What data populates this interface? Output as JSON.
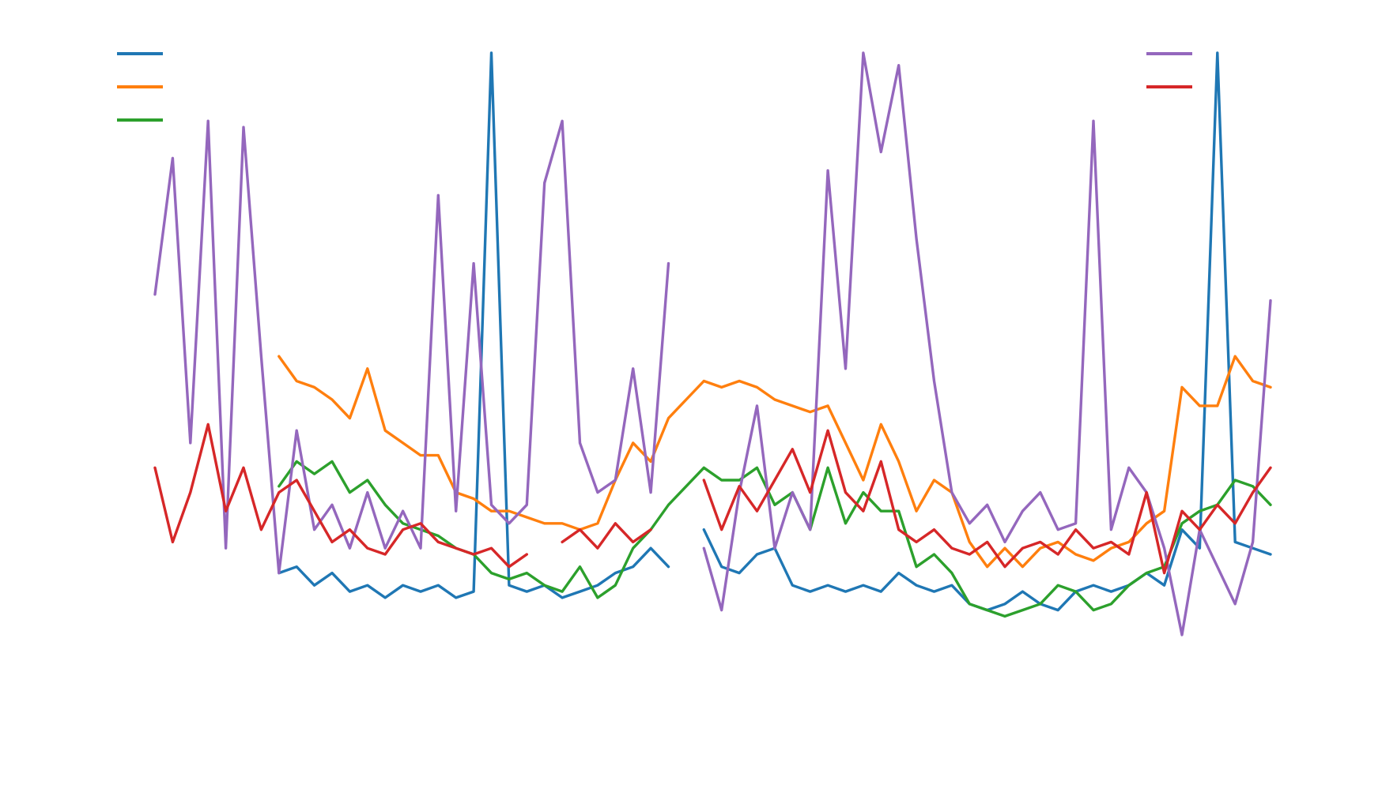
{
  "chart_data": {
    "type": "line",
    "x": [
      0,
      1,
      2,
      3,
      4,
      5,
      6,
      7,
      8,
      9,
      10,
      11,
      12,
      13,
      14,
      15,
      16,
      17,
      18,
      19,
      20,
      21,
      22,
      23,
      24,
      25,
      26,
      27,
      28,
      29,
      30,
      31,
      32,
      33,
      34,
      35,
      36,
      37,
      38,
      39,
      40,
      41,
      42,
      43,
      44,
      45,
      46,
      47,
      48,
      49,
      50,
      51,
      52,
      53,
      54,
      55,
      56,
      57,
      58,
      59,
      60,
      61,
      62,
      63
    ],
    "xlim": [
      0,
      63
    ],
    "ylim": [
      0,
      100
    ],
    "series": [
      {
        "color": "#1f77b4",
        "values": [
          null,
          null,
          null,
          null,
          null,
          null,
          null,
          16,
          17,
          14,
          16,
          13,
          14,
          12,
          14,
          13,
          14,
          12,
          13,
          100,
          14,
          13,
          14,
          12,
          13,
          14,
          16,
          17,
          20,
          17,
          null,
          23,
          17,
          16,
          19,
          20,
          14,
          13,
          14,
          13,
          14,
          13,
          16,
          14,
          13,
          14,
          11,
          10,
          11,
          13,
          11,
          10,
          13,
          14,
          13,
          14,
          16,
          14,
          23,
          20,
          100,
          21,
          20,
          19
        ]
      },
      {
        "color": "#ff7f0e",
        "values": [
          null,
          null,
          null,
          null,
          null,
          null,
          null,
          51,
          47,
          46,
          44,
          41,
          49,
          39,
          37,
          35,
          35,
          29,
          28,
          26,
          26,
          25,
          24,
          24,
          23,
          24,
          31,
          37,
          34,
          41,
          44,
          47,
          46,
          47,
          46,
          44,
          43,
          42,
          43,
          37,
          31,
          40,
          34,
          26,
          31,
          29,
          21,
          17,
          20,
          17,
          20,
          21,
          19,
          18,
          20,
          21,
          24,
          26,
          46,
          43,
          43,
          51,
          47,
          46
        ]
      },
      {
        "color": "#2ca02c",
        "values": [
          null,
          null,
          null,
          null,
          null,
          null,
          null,
          30,
          34,
          32,
          34,
          29,
          31,
          27,
          24,
          23,
          22,
          20,
          19,
          16,
          15,
          16,
          14,
          13,
          17,
          12,
          14,
          20,
          23,
          27,
          30,
          33,
          31,
          31,
          33,
          27,
          29,
          23,
          33,
          24,
          29,
          26,
          26,
          17,
          19,
          16,
          11,
          10,
          9,
          10,
          11,
          14,
          13,
          10,
          11,
          14,
          16,
          17,
          24,
          26,
          27,
          31,
          30,
          27
        ]
      },
      {
        "color": "#9467bd",
        "values": [
          61,
          83,
          37,
          89,
          20,
          88,
          51,
          16,
          39,
          23,
          27,
          20,
          29,
          20,
          26,
          20,
          77,
          26,
          66,
          27,
          24,
          27,
          79,
          89,
          37,
          29,
          31,
          49,
          29,
          66,
          null,
          20,
          10,
          29,
          43,
          20,
          29,
          23,
          81,
          49,
          100,
          84,
          98,
          70,
          47,
          29,
          24,
          27,
          21,
          26,
          29,
          23,
          24,
          89,
          23,
          33,
          29,
          20,
          6,
          23,
          17,
          11,
          21,
          60
        ]
      },
      {
        "color": "#d62728",
        "values": [
          33,
          21,
          29,
          40,
          26,
          33,
          23,
          29,
          31,
          26,
          21,
          23,
          20,
          19,
          23,
          24,
          21,
          20,
          19,
          20,
          17,
          19,
          null,
          21,
          23,
          20,
          24,
          21,
          23,
          null,
          null,
          31,
          23,
          30,
          26,
          31,
          36,
          29,
          39,
          29,
          26,
          34,
          23,
          21,
          23,
          20,
          19,
          21,
          17,
          20,
          21,
          19,
          23,
          20,
          21,
          19,
          29,
          16,
          26,
          23,
          27,
          24,
          29,
          33
        ]
      }
    ]
  }
}
